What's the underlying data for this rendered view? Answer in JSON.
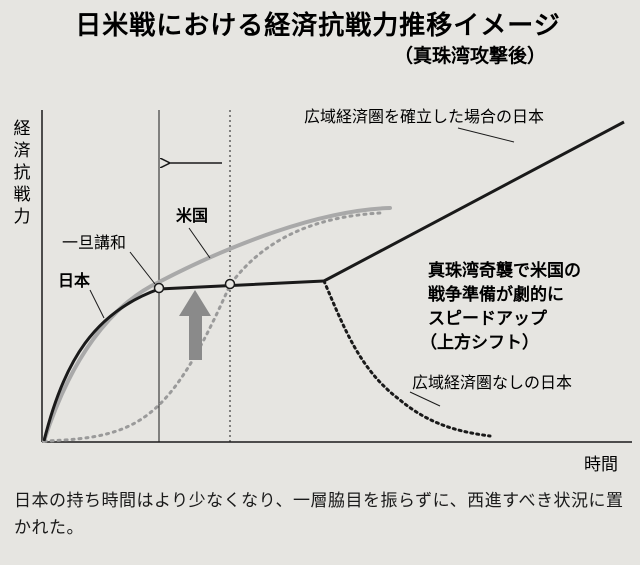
{
  "title": "日米戦における経済抗戦力推移イメージ",
  "subtitle": "（真珠湾攻撃後）",
  "y_axis_label": "経済抗戦力",
  "x_axis_label": "時間",
  "labels": {
    "japan": "日本",
    "usa": "米国",
    "truce": "一旦講和",
    "japan_with_sphere": "広域経済圏を確立した場合の日本",
    "japan_without_sphere": "広域経済圏なしの日本"
  },
  "annotation": {
    "line1": "真珠湾奇襲で米国の",
    "line2": "戦争準備が劇的に",
    "line3": "スピードアップ",
    "line4": "（上方シフト）"
  },
  "caption": "日本の持ち時間はより少なくなり、一層脇目を振らずに、西進すべき状況に置かれた。",
  "colors": {
    "japan": "#1a1a1a",
    "usa": "#a9a9a9",
    "usa_before": "#9a9a9a",
    "arrow": "#8a8a8a"
  }
}
